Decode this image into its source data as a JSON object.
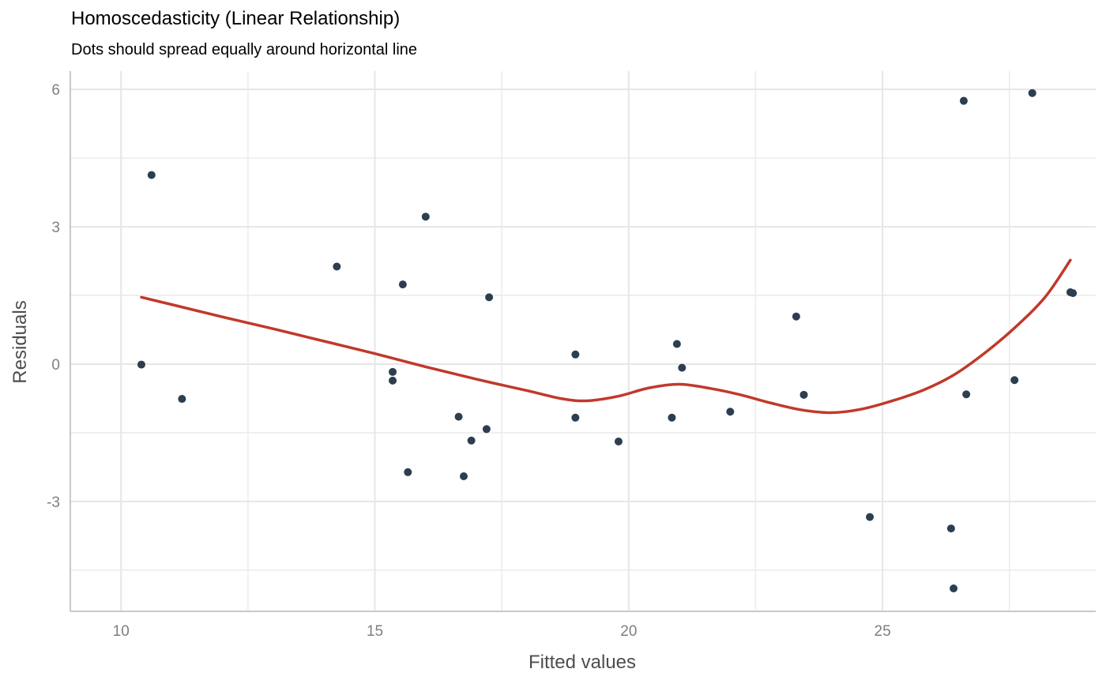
{
  "chart_data": {
    "type": "scatter",
    "title": "Homoscedasticity (Linear Relationship)",
    "subtitle": "Dots should spread equally around horizontal line",
    "xlabel": "Fitted values",
    "ylabel": "Residuals",
    "xlim": [
      9,
      29.2
    ],
    "ylim": [
      -5.4,
      6.4
    ],
    "x_major_ticks": [
      10,
      15,
      20,
      25
    ],
    "x_minor_ticks": [
      12.5,
      17.5,
      22.5,
      27.5
    ],
    "y_major_ticks": [
      -3,
      0,
      3,
      6
    ],
    "y_minor_ticks": [
      -4.5,
      -1.5,
      1.5,
      4.5
    ],
    "x_tick_labels": [
      "10",
      "15",
      "20",
      "25"
    ],
    "y_tick_labels": [
      "-3",
      "0",
      "3",
      "6"
    ],
    "grid": true,
    "colors": {
      "points": "#2c3e50",
      "smooth_line": "#c0392b"
    },
    "points": [
      {
        "x": 10.4,
        "y": -0.01
      },
      {
        "x": 10.6,
        "y": 4.13
      },
      {
        "x": 11.2,
        "y": -0.76
      },
      {
        "x": 14.25,
        "y": 2.13
      },
      {
        "x": 15.35,
        "y": -0.17
      },
      {
        "x": 15.35,
        "y": -0.36
      },
      {
        "x": 15.55,
        "y": 1.74
      },
      {
        "x": 15.65,
        "y": -2.36
      },
      {
        "x": 16.0,
        "y": 3.22
      },
      {
        "x": 16.65,
        "y": -1.15
      },
      {
        "x": 16.75,
        "y": -2.45
      },
      {
        "x": 16.9,
        "y": -1.67
      },
      {
        "x": 17.2,
        "y": -1.42
      },
      {
        "x": 17.25,
        "y": 1.46
      },
      {
        "x": 18.95,
        "y": 0.21
      },
      {
        "x": 18.95,
        "y": -1.17
      },
      {
        "x": 19.8,
        "y": -1.69
      },
      {
        "x": 20.85,
        "y": -1.17
      },
      {
        "x": 20.95,
        "y": 0.44
      },
      {
        "x": 21.05,
        "y": -0.08
      },
      {
        "x": 22.0,
        "y": -1.04
      },
      {
        "x": 23.3,
        "y": 1.04
      },
      {
        "x": 23.45,
        "y": -0.67
      },
      {
        "x": 24.75,
        "y": -3.34
      },
      {
        "x": 26.35,
        "y": -3.59
      },
      {
        "x": 26.4,
        "y": -4.9
      },
      {
        "x": 26.6,
        "y": 5.75
      },
      {
        "x": 26.65,
        "y": -0.66
      },
      {
        "x": 27.6,
        "y": -0.35
      },
      {
        "x": 27.95,
        "y": 5.92
      },
      {
        "x": 28.7,
        "y": 1.57
      },
      {
        "x": 28.75,
        "y": 1.55
      }
    ],
    "smooth_line": [
      {
        "x": 10.4,
        "y": 1.46
      },
      {
        "x": 11.0,
        "y": 1.3
      },
      {
        "x": 12.0,
        "y": 1.03
      },
      {
        "x": 13.0,
        "y": 0.77
      },
      {
        "x": 14.0,
        "y": 0.5
      },
      {
        "x": 15.0,
        "y": 0.23
      },
      {
        "x": 16.0,
        "y": -0.06
      },
      {
        "x": 17.0,
        "y": -0.33
      },
      {
        "x": 18.0,
        "y": -0.58
      },
      {
        "x": 18.7,
        "y": -0.76
      },
      {
        "x": 19.2,
        "y": -0.8
      },
      {
        "x": 19.8,
        "y": -0.7
      },
      {
        "x": 20.4,
        "y": -0.52
      },
      {
        "x": 21.0,
        "y": -0.44
      },
      {
        "x": 21.6,
        "y": -0.53
      },
      {
        "x": 22.2,
        "y": -0.67
      },
      {
        "x": 22.8,
        "y": -0.85
      },
      {
        "x": 23.4,
        "y": -1.0
      },
      {
        "x": 24.0,
        "y": -1.06
      },
      {
        "x": 24.6,
        "y": -0.98
      },
      {
        "x": 25.2,
        "y": -0.8
      },
      {
        "x": 25.8,
        "y": -0.57
      },
      {
        "x": 26.4,
        "y": -0.24
      },
      {
        "x": 27.0,
        "y": 0.23
      },
      {
        "x": 27.6,
        "y": 0.79
      },
      {
        "x": 28.2,
        "y": 1.46
      },
      {
        "x": 28.7,
        "y": 2.27
      }
    ]
  }
}
